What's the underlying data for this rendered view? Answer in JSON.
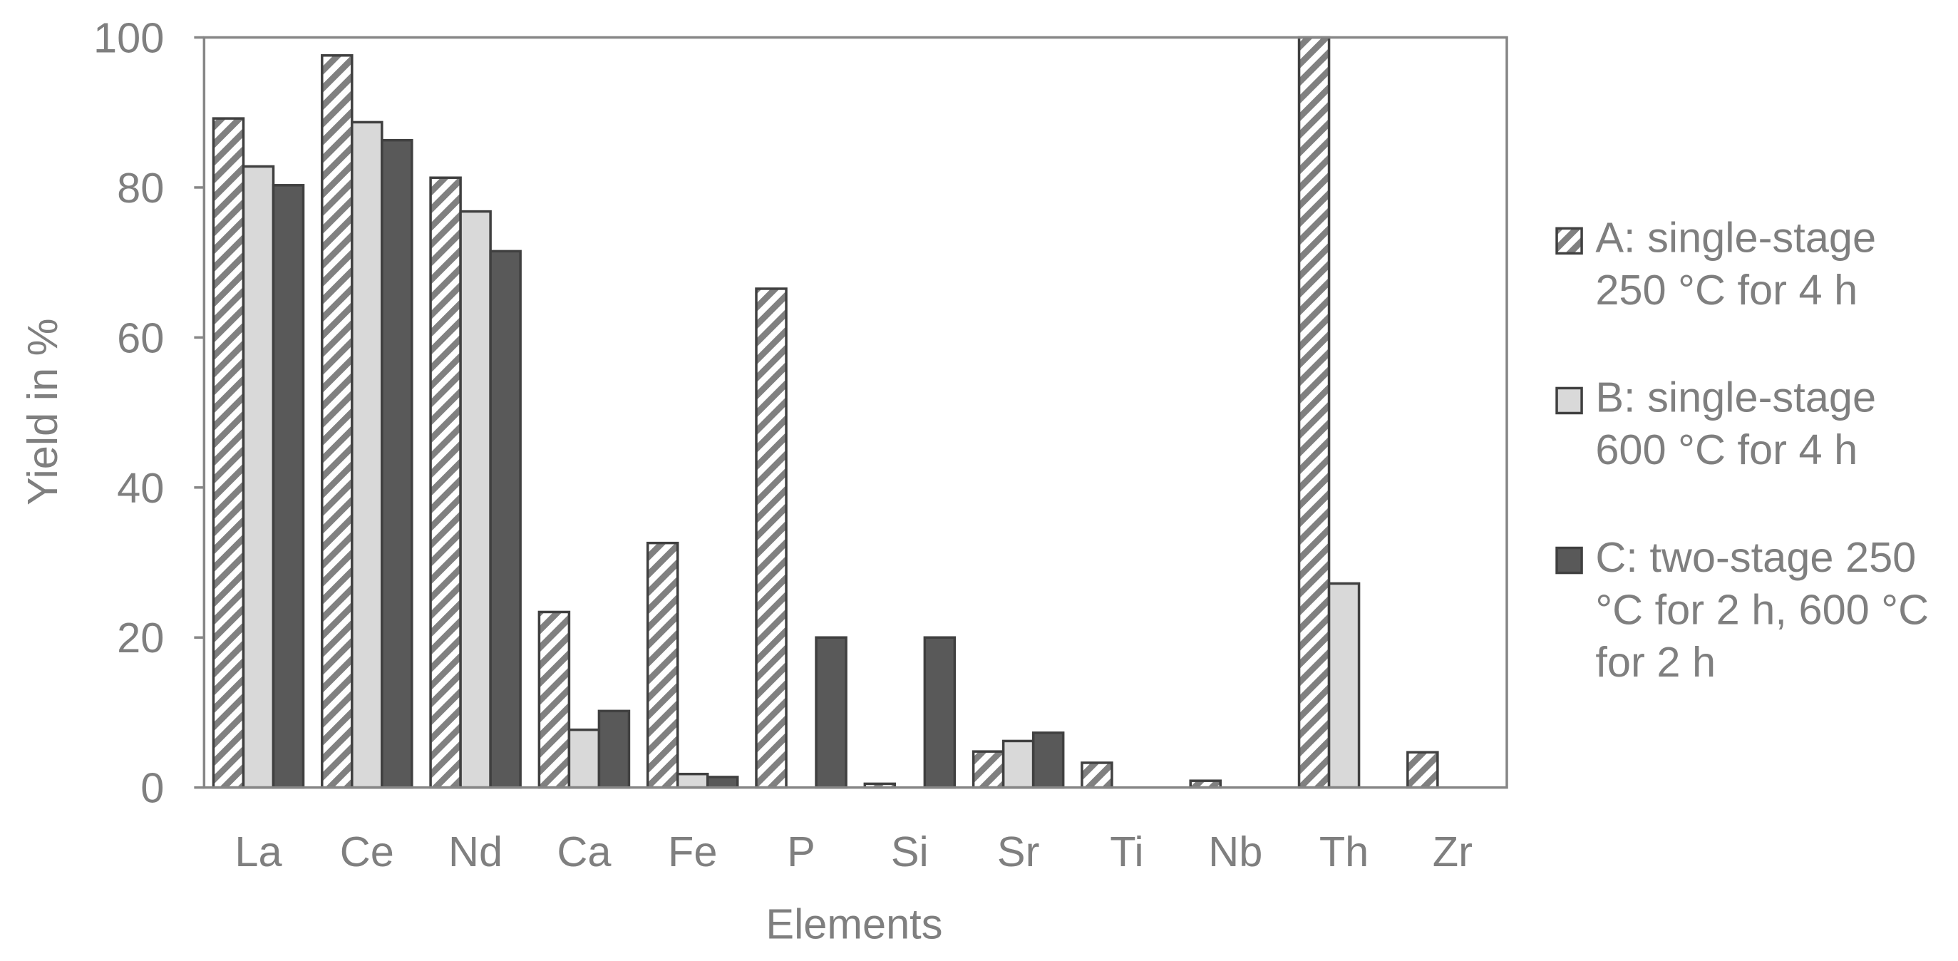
{
  "chart_data": {
    "type": "bar",
    "x_label": "Elements",
    "y_label": "Yield in %",
    "categories": [
      "La",
      "Ce",
      "Nd",
      "Ca",
      "Fe",
      "P",
      "Si",
      "Sr",
      "Ti",
      "Nb",
      "Th",
      "Zr"
    ],
    "series": [
      {
        "name": "A: single-stage 250 °C for 4 h",
        "color": "#808080",
        "hatch": true,
        "values": [
          89.2,
          97.6,
          81.3,
          23.4,
          32.6,
          66.5,
          0.5,
          4.8,
          3.3,
          0.9,
          100,
          4.7
        ]
      },
      {
        "name": "B: single-stage 600 °C for 4 h",
        "color": "#d9d9d9",
        "hatch": false,
        "values": [
          82.8,
          88.7,
          76.8,
          7.7,
          1.8,
          0,
          0,
          6.2,
          0,
          0,
          27.2,
          0
        ]
      },
      {
        "name": "C: two-stage 250 °C for 2 h, 600 °C for 2 h",
        "color": "#595959",
        "hatch": false,
        "values": [
          80.3,
          86.3,
          71.5,
          10.2,
          1.4,
          20,
          20,
          7.3,
          0,
          0,
          0,
          0
        ]
      }
    ],
    "ylim": [
      0,
      100
    ],
    "yticks": [
      0,
      20,
      40,
      60,
      80,
      100
    ],
    "legend": "right",
    "grid": false
  }
}
